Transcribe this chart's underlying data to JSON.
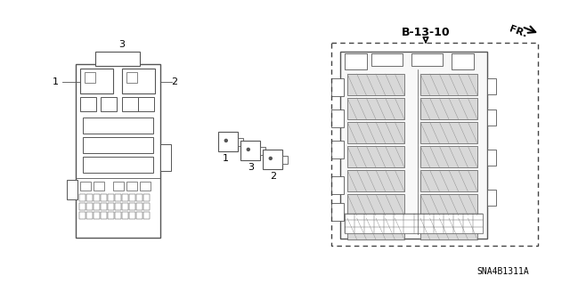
{
  "part_number": "SNA4B1311A",
  "reference_label": "B-13-10",
  "direction_label": "FR.",
  "background_color": "#ffffff",
  "line_color": "#555555",
  "label_color": "#000000",
  "fig_w": 6.4,
  "fig_h": 3.19,
  "dpi": 100
}
